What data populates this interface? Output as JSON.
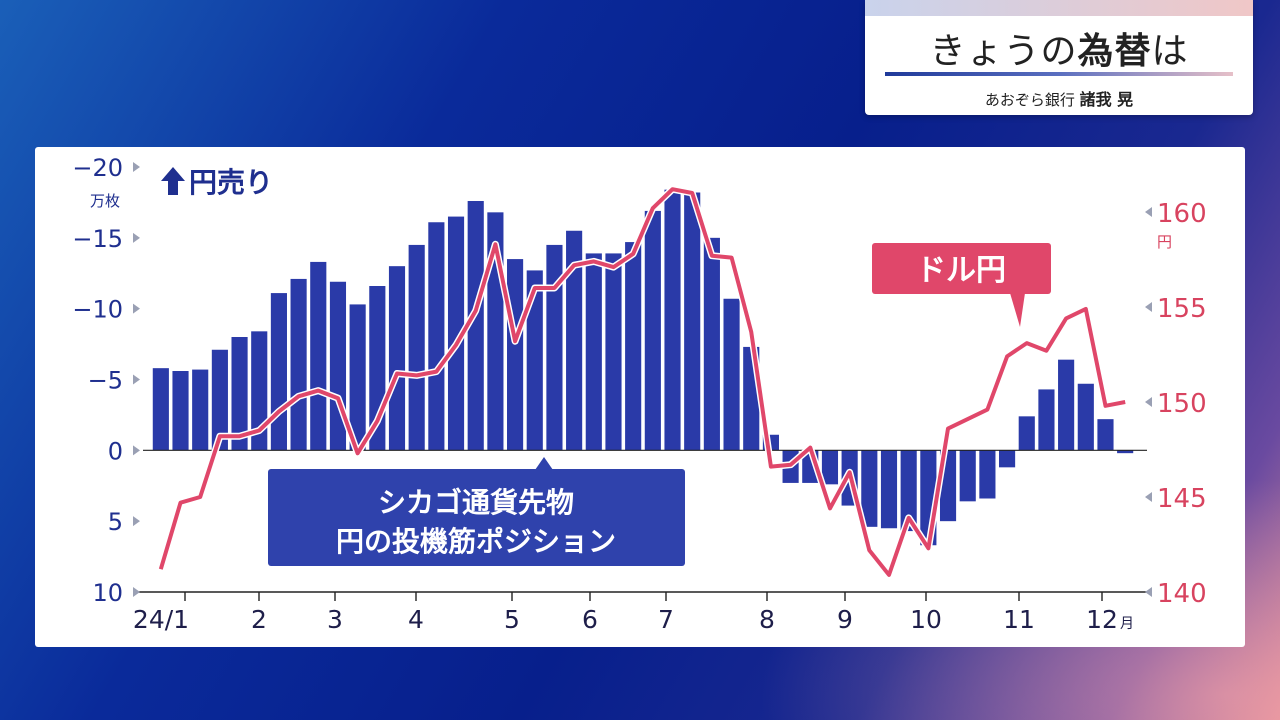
{
  "header": {
    "title_pre": "きょうの",
    "title_bold": "為替",
    "title_post": "は",
    "org": "あおぞら銀行",
    "person": "諸我 晃"
  },
  "colors": {
    "bar": "#2a3aa8",
    "line": "#e0476a",
    "left_axis_text": "#1f2f8f",
    "right_axis_text": "#d8435f",
    "label_box": "#2f42ac"
  },
  "chart_data": {
    "type": "bar",
    "left_axis": {
      "unit_label": "万枚",
      "ticks": [
        {
          "value": 20,
          "label": "−20"
        },
        {
          "value": 15,
          "label": "−15"
        },
        {
          "value": 10,
          "label": "−10"
        },
        {
          "value": 5,
          "label": "−5"
        },
        {
          "value": 0,
          "label": "0"
        },
        {
          "value": -5,
          "label": "5"
        },
        {
          "value": -10,
          "label": "10"
        }
      ],
      "annotation": "円売り",
      "ylim": [
        -10,
        20
      ]
    },
    "right_axis": {
      "unit_label": "円",
      "ticks": [
        160,
        155,
        150,
        145,
        140
      ],
      "ylim": [
        140,
        161
      ]
    },
    "x_labels": [
      "24/1",
      "2",
      "3",
      "4",
      "5",
      "6",
      "7",
      "8",
      "9",
      "10",
      "11",
      "12"
    ],
    "x_unit": "月",
    "series": [
      {
        "name": "シカゴ通貨先物 円の投機筋ポジション",
        "type": "bar",
        "values": [
          5.8,
          5.6,
          5.7,
          7.1,
          8.0,
          8.4,
          11.1,
          12.1,
          13.3,
          11.9,
          10.3,
          11.6,
          13.0,
          14.5,
          16.1,
          16.5,
          17.6,
          16.8,
          13.5,
          12.7,
          14.5,
          15.5,
          13.9,
          13.9,
          14.7,
          16.9,
          18.4,
          18.2,
          15.0,
          10.7,
          7.3,
          1.1,
          -2.3,
          -2.3,
          -2.4,
          -3.9,
          -5.4,
          -5.5,
          -5.7,
          -6.7,
          -5.0,
          -3.6,
          -3.4,
          -1.2,
          2.4,
          4.3,
          6.4,
          4.7,
          2.2,
          -0.2
        ]
      },
      {
        "name": "ドル円",
        "type": "line",
        "values": [
          141.2,
          144.7,
          145.0,
          148.2,
          148.2,
          148.5,
          149.5,
          150.3,
          150.6,
          150.2,
          147.3,
          149.0,
          151.5,
          151.4,
          151.6,
          153.0,
          154.8,
          158.3,
          153.2,
          156.0,
          156.0,
          157.2,
          157.4,
          157.1,
          157.8,
          160.2,
          161.2,
          161.0,
          157.7,
          157.6,
          153.7,
          146.6,
          146.7,
          147.6,
          144.4,
          146.3,
          142.2,
          140.9,
          143.9,
          142.3,
          148.6,
          149.1,
          149.6,
          152.4,
          153.1,
          152.7,
          154.4,
          154.9,
          149.8,
          150.0
        ]
      }
    ],
    "annotations": [
      "シカゴ通貨先物",
      "円の投機筋ポジション",
      "ドル円"
    ],
    "grid": false
  }
}
